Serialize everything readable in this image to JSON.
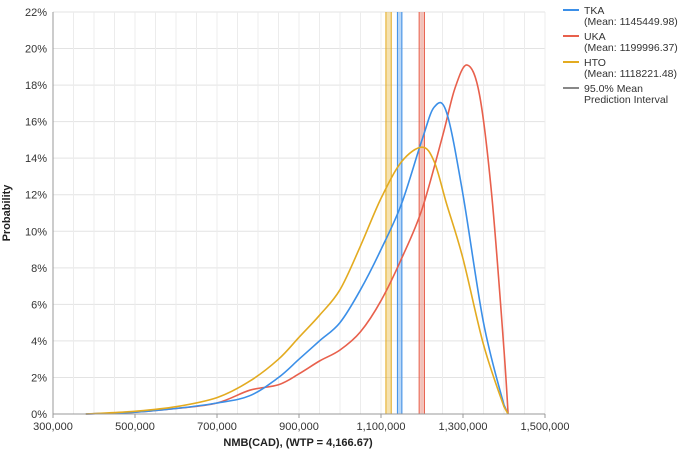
{
  "chart_data": {
    "type": "line",
    "xlabel": "NMB(CAD), (WTP = 4,166.67)",
    "ylabel": "Probability",
    "xlim": [
      300000,
      1500000
    ],
    "ylim": [
      0,
      22
    ],
    "x_ticks": [
      300000,
      500000,
      700000,
      900000,
      1100000,
      1300000,
      1500000
    ],
    "x_tick_labels": [
      "300,000",
      "500,000",
      "700,000",
      "900,000",
      "1,100,000",
      "1,300,000",
      "1,500,000"
    ],
    "y_ticks": [
      0,
      2,
      4,
      6,
      8,
      10,
      12,
      14,
      16,
      18,
      20,
      22
    ],
    "y_tick_labels": [
      "0%",
      "2%",
      "4%",
      "6%",
      "8%",
      "10%",
      "12%",
      "14%",
      "16%",
      "18%",
      "20%",
      "22%"
    ],
    "grid": true,
    "legend_position": "top-right",
    "series": [
      {
        "name": "TKA",
        "label_line1": "TKA",
        "label_line2": "(Mean: 1145449.98)",
        "mean": 1145449.98,
        "color": "#3b8fe8",
        "x": [
          380000,
          500000,
          600000,
          700000,
          780000,
          850000,
          900000,
          950000,
          1000000,
          1050000,
          1100000,
          1150000,
          1200000,
          1230000,
          1260000,
          1300000,
          1350000,
          1400000,
          1410000
        ],
        "y": [
          0.0,
          0.1,
          0.3,
          0.6,
          1.0,
          2.0,
          3.0,
          4.0,
          5.0,
          6.8,
          9.0,
          11.5,
          15.0,
          16.8,
          16.5,
          12.0,
          5.0,
          0.5,
          0.0
        ]
      },
      {
        "name": "UKA",
        "label_line1": "UKA",
        "label_line2": "(Mean: 1199996.37)",
        "mean": 1199996.37,
        "color": "#e8604c",
        "x": [
          380000,
          500000,
          600000,
          700000,
          780000,
          850000,
          900000,
          950000,
          1000000,
          1050000,
          1100000,
          1150000,
          1200000,
          1250000,
          1280000,
          1310000,
          1340000,
          1370000,
          1400000,
          1410000
        ],
        "y": [
          0.0,
          0.1,
          0.3,
          0.6,
          1.3,
          1.6,
          2.2,
          2.9,
          3.5,
          4.5,
          6.2,
          8.5,
          11.2,
          15.2,
          17.8,
          19.1,
          17.5,
          12.0,
          3.5,
          0.0
        ]
      },
      {
        "name": "HTO",
        "label_line1": "HTO",
        "label_line2": "(Mean: 1118221.48)",
        "mean": 1118221.48,
        "color": "#e3ab20",
        "x": [
          380000,
          500000,
          600000,
          700000,
          780000,
          850000,
          900000,
          950000,
          1000000,
          1050000,
          1100000,
          1150000,
          1200000,
          1230000,
          1260000,
          1300000,
          1350000,
          1400000,
          1410000
        ],
        "y": [
          0.0,
          0.15,
          0.4,
          0.9,
          1.8,
          3.0,
          4.2,
          5.4,
          6.8,
          9.2,
          11.8,
          13.8,
          14.6,
          13.8,
          11.5,
          8.5,
          3.8,
          0.4,
          0.0
        ]
      }
    ],
    "prediction_interval": {
      "label_line1": "95.0% Mean",
      "label_line2": "Prediction Interval",
      "color": "#888888",
      "bands": [
        {
          "series": "HTO",
          "from": 1112000,
          "to": 1125000
        },
        {
          "series": "TKA",
          "from": 1140000,
          "to": 1151000
        },
        {
          "series": "UKA",
          "from": 1193000,
          "to": 1206000
        }
      ]
    }
  }
}
